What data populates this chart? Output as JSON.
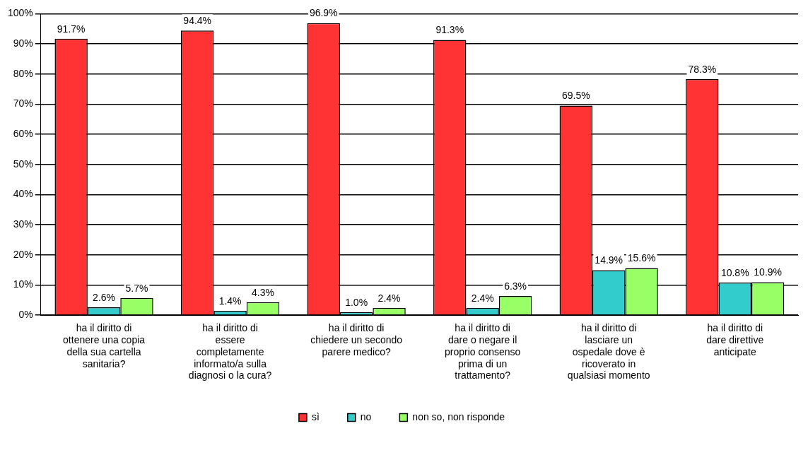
{
  "chart_data": {
    "type": "bar",
    "categories": [
      "ha il diritto di ottenere una copia della sua cartella sanitaria?",
      "ha il diritto di essere completamente informato/a sulla diagnosi o la cura?",
      "ha il diritto di chiedere un secondo parere medico?",
      "ha il diritto di dare o negare il proprio consenso prima di un trattamento?",
      "ha il diritto di lasciare un ospedale dove è ricoverato in qualsiasi momento",
      "ha il diritto di dare direttive anticipate"
    ],
    "series": [
      {
        "name": "sì",
        "color": "#ff3333",
        "values": [
          91.7,
          94.4,
          96.9,
          91.3,
          69.5,
          78.3
        ],
        "value_labels": [
          "91.7%",
          "94.4%",
          "96.9%",
          "91.3%",
          "69.5%",
          "78.3%"
        ]
      },
      {
        "name": "no",
        "color": "#33cccc",
        "values": [
          2.6,
          1.4,
          1.0,
          2.4,
          14.9,
          10.8
        ],
        "value_labels": [
          "2.6%",
          "1.4%",
          "1.0%",
          "2.4%",
          "14.9%",
          "10.8%"
        ]
      },
      {
        "name": "non so, non risponde",
        "color": "#99ff66",
        "values": [
          5.7,
          4.3,
          2.4,
          6.3,
          15.6,
          10.9
        ],
        "value_labels": [
          "5.7%",
          "4.3%",
          "2.4%",
          "6.3%",
          "15.6%",
          "10.9%"
        ]
      }
    ],
    "ylim": [
      0,
      100
    ],
    "yticks": [
      {
        "value": 0,
        "label": "0%"
      },
      {
        "value": 10,
        "label": "10%"
      },
      {
        "value": 20,
        "label": "20%"
      },
      {
        "value": 30,
        "label": "30%"
      },
      {
        "value": 40,
        "label": "40%"
      },
      {
        "value": 50,
        "label": "50%"
      },
      {
        "value": 60,
        "label": "60%"
      },
      {
        "value": 70,
        "label": "70%"
      },
      {
        "value": 80,
        "label": "80%"
      },
      {
        "value": 90,
        "label": "90%"
      },
      {
        "value": 100,
        "label": "100%"
      }
    ],
    "grid": "y",
    "legend": "bottom"
  }
}
